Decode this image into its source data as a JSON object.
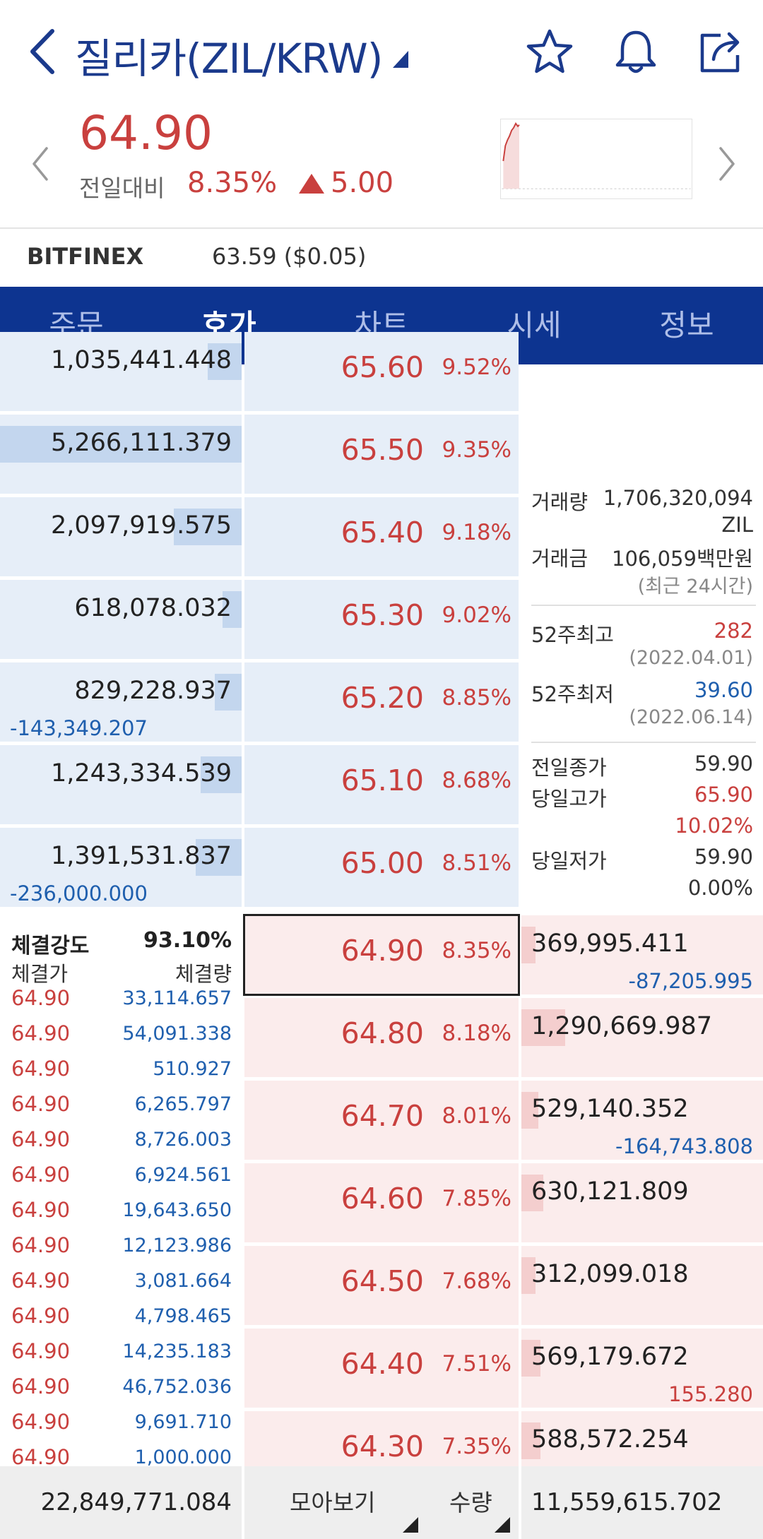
{
  "header": {
    "title": "질리카(ZIL/KRW)",
    "icons": [
      "back-icon",
      "star-icon",
      "bell-icon",
      "share-icon"
    ]
  },
  "quote": {
    "price": "64.90",
    "change_label": "전일대비",
    "change_pct": "8.35%",
    "change_amount": "5.00",
    "color_up": "#c9403e",
    "color_down": "#1f5fae"
  },
  "exchange": {
    "name": "BITFINEX",
    "value": "63.59 ($0.05)"
  },
  "tabs": [
    {
      "label": "주문"
    },
    {
      "label": "호가"
    },
    {
      "label": "차트"
    },
    {
      "label": "시세"
    },
    {
      "label": "정보"
    }
  ],
  "asks": [
    {
      "qty": "1,035,441.448",
      "price": "65.60",
      "pct": "9.52%",
      "delta": "",
      "fill": 0.14
    },
    {
      "qty": "5,266,111.379",
      "price": "65.50",
      "pct": "9.35%",
      "delta": "",
      "fill": 1.0
    },
    {
      "qty": "2,097,919.575",
      "price": "65.40",
      "pct": "9.18%",
      "delta": "",
      "fill": 0.28
    },
    {
      "qty": "618,078.032",
      "price": "65.30",
      "pct": "9.02%",
      "delta": "",
      "fill": 0.08
    },
    {
      "qty": "829,228.937",
      "price": "65.20",
      "pct": "8.85%",
      "delta": "-143,349.207",
      "fill": 0.11
    },
    {
      "qty": "1,243,334.539",
      "price": "65.10",
      "pct": "8.68%",
      "delta": "",
      "fill": 0.17
    },
    {
      "qty": "1,391,531.837",
      "price": "65.00",
      "pct": "8.51%",
      "delta": "-236,000.000",
      "fill": 0.19
    }
  ],
  "bids": [
    {
      "qty": "369,995.411",
      "price": "64.90",
      "pct": "8.35%",
      "delta": "-87,205.995",
      "delta_dir": "down",
      "fill": 0.05
    },
    {
      "qty": "1,290,669.987",
      "price": "64.80",
      "pct": "8.18%",
      "delta": "",
      "delta_dir": "",
      "fill": 0.18
    },
    {
      "qty": "529,140.352",
      "price": "64.70",
      "pct": "8.01%",
      "delta": "-164,743.808",
      "delta_dir": "down",
      "fill": 0.07
    },
    {
      "qty": "630,121.809",
      "price": "64.60",
      "pct": "7.85%",
      "delta": "",
      "delta_dir": "",
      "fill": 0.09
    },
    {
      "qty": "312,099.018",
      "price": "64.50",
      "pct": "7.68%",
      "delta": "",
      "delta_dir": "",
      "fill": 0.04
    },
    {
      "qty": "569,179.672",
      "price": "64.40",
      "pct": "7.51%",
      "delta": "155.280",
      "delta_dir": "up",
      "fill": 0.08
    },
    {
      "qty": "588,572.254",
      "price": "64.30",
      "pct": "7.35%",
      "delta": "",
      "delta_dir": "",
      "fill": 0.08
    }
  ],
  "info": {
    "volume_label": "거래량",
    "volume": "1,706,320,094",
    "volume_unit": "ZIL",
    "amount_label": "거래금",
    "amount": "106,059백만원",
    "period_note": "(최근 24시간)",
    "high52_label": "52주최고",
    "high52": "282",
    "high52_date": "(2022.04.01)",
    "low52_label": "52주최저",
    "low52": "39.60",
    "low52_date": "(2022.06.14)",
    "prev_close_label": "전일종가",
    "prev_close": "59.90",
    "day_high_label": "당일고가",
    "day_high": "65.90",
    "day_high_pct": "10.02%",
    "day_low_label": "당일저가",
    "day_low": "59.90",
    "day_low_pct": "0.00%"
  },
  "trades": {
    "strength_label": "체결강도",
    "strength": "93.10%",
    "price_header": "체결가",
    "volume_header": "체결량",
    "rows": [
      {
        "price": "64.90",
        "volume": "33,114.657"
      },
      {
        "price": "64.90",
        "volume": "54,091.338"
      },
      {
        "price": "64.90",
        "volume": "510.927"
      },
      {
        "price": "64.90",
        "volume": "6,265.797"
      },
      {
        "price": "64.90",
        "volume": "8,726.003"
      },
      {
        "price": "64.90",
        "volume": "6,924.561"
      },
      {
        "price": "64.90",
        "volume": "19,643.650"
      },
      {
        "price": "64.90",
        "volume": "12,123.986"
      },
      {
        "price": "64.90",
        "volume": "3,081.664"
      },
      {
        "price": "64.90",
        "volume": "4,798.465"
      },
      {
        "price": "64.90",
        "volume": "14,235.183"
      },
      {
        "price": "64.90",
        "volume": "46,752.036"
      },
      {
        "price": "64.90",
        "volume": "9,691.710"
      },
      {
        "price": "64.90",
        "volume": "1,000.000"
      }
    ]
  },
  "footer": {
    "total_ask": "22,849,771.084",
    "view_mode": "모아보기",
    "unit_mode": "수량",
    "total_bid": "11,559,615.702"
  }
}
